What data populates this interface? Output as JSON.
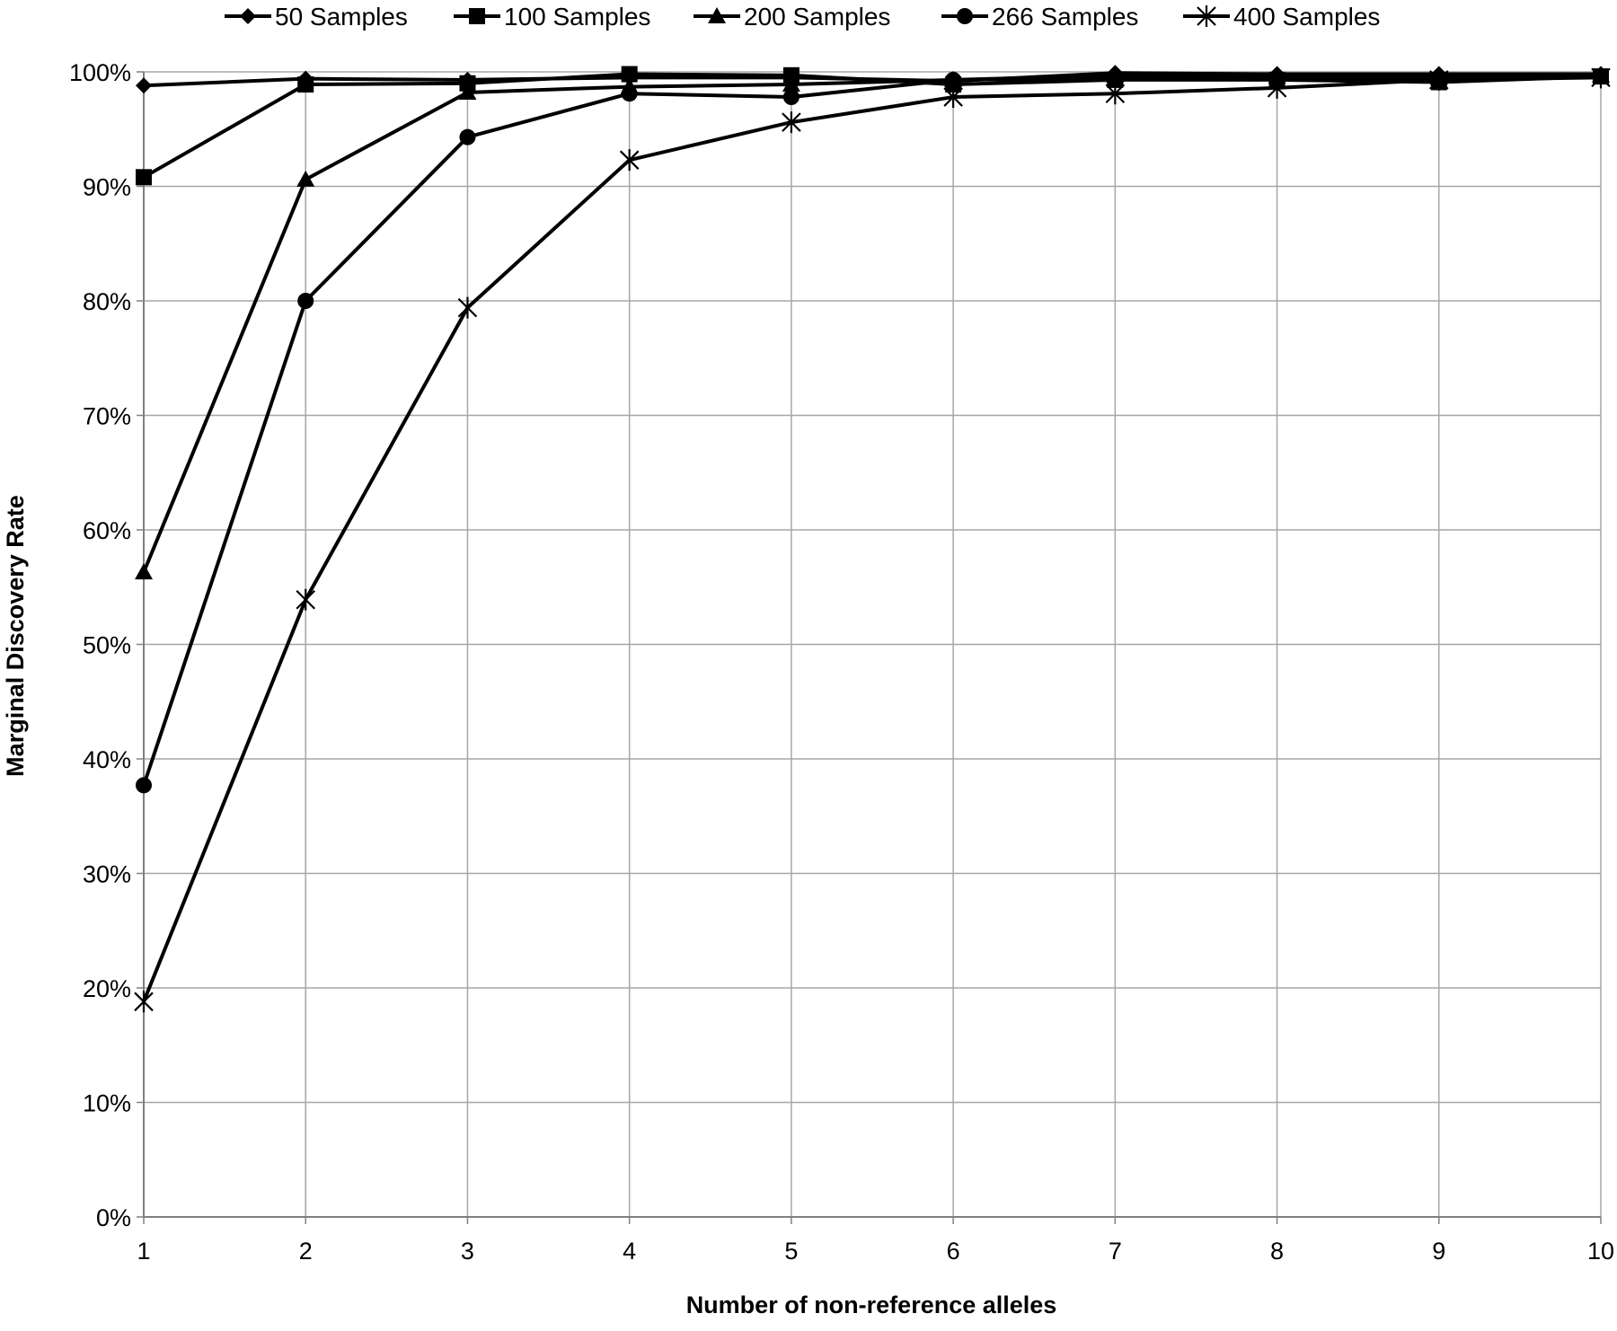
{
  "chart_data": {
    "type": "line",
    "title": "",
    "xlabel": "Number of non-reference alleles",
    "ylabel": "Marginal Discovery Rate",
    "x": [
      1,
      2,
      3,
      4,
      5,
      6,
      7,
      8,
      9,
      10
    ],
    "xlim": [
      1,
      10
    ],
    "ylim": [
      0,
      100
    ],
    "y_unit": "%",
    "yticks": [
      "0%",
      "10%",
      "20%",
      "30%",
      "40%",
      "50%",
      "60%",
      "70%",
      "80%",
      "90%",
      "100%"
    ],
    "xticks": [
      "1",
      "2",
      "3",
      "4",
      "5",
      "6",
      "7",
      "8",
      "9",
      "10"
    ],
    "grid": true,
    "legend_position": "top",
    "series": [
      {
        "name": "50 Samples",
        "marker": "diamond",
        "values": [
          98.8,
          99.4,
          99.3,
          99.5,
          99.5,
          99.2,
          99.9,
          99.8,
          99.8,
          99.8
        ]
      },
      {
        "name": "100 Samples",
        "marker": "square",
        "values": [
          90.8,
          98.9,
          99.0,
          99.8,
          99.7,
          98.9,
          99.3,
          99.3,
          99.1,
          99.6
        ]
      },
      {
        "name": "200 Samples",
        "marker": "triangle",
        "values": [
          56.3,
          90.6,
          98.2,
          98.7,
          98.9,
          99.3,
          99.7,
          99.6,
          99.5,
          99.7
        ]
      },
      {
        "name": "266 Samples",
        "marker": "circle",
        "values": [
          37.7,
          80.0,
          94.3,
          98.1,
          97.8,
          99.3,
          99.4,
          99.5,
          99.4,
          99.6
        ]
      },
      {
        "name": "400 Samples",
        "marker": "star",
        "values": [
          18.8,
          53.9,
          79.4,
          92.3,
          95.6,
          97.8,
          98.1,
          98.6,
          99.3,
          99.5
        ]
      }
    ],
    "colors": {
      "line": "#000000",
      "grid": "#a6a6a6",
      "axis": "#808080"
    }
  }
}
